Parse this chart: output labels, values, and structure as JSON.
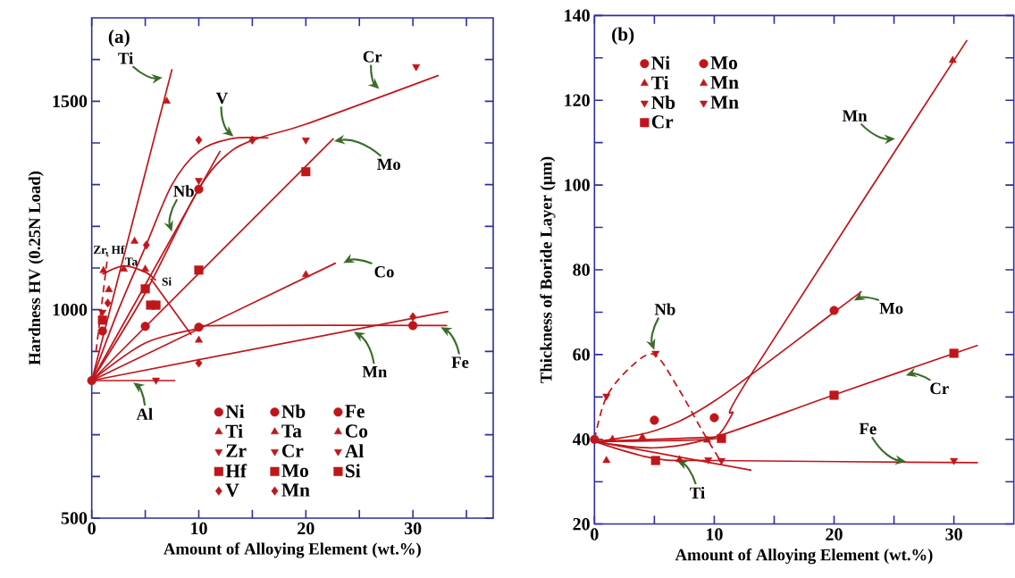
{
  "chart_data": [
    {
      "type": "scatter",
      "xlabel": "Amount of Alloying Element (wt.%)",
      "ylabel": "Hardness HV (0.25N Load)",
      "xlim": [
        0,
        37.5
      ],
      "ylim": [
        500,
        1700
      ],
      "xticks": [
        0,
        {
          "value": 5,
          "label": null
        },
        10,
        {
          "value": 15,
          "label": null
        },
        20,
        {
          "value": 25,
          "label": null
        },
        30,
        {
          "value": 35,
          "label": null
        }
      ],
      "yticks": [
        500,
        {
          "value": 600,
          "label": null
        },
        {
          "value": 700,
          "label": null
        },
        {
          "value": 800,
          "label": null
        },
        {
          "value": 900,
          "label": null
        },
        1000,
        {
          "value": 1100,
          "label": null
        },
        {
          "value": 1200,
          "label": null
        },
        {
          "value": 1300,
          "label": null
        },
        {
          "value": 1400,
          "label": null
        },
        1500,
        {
          "value": 1600,
          "label": null
        }
      ],
      "legend": "bottom",
      "annotations": [
        "(a)",
        {
          "text": "Ti",
          "x": 6.95,
          "y": 1558
        },
        {
          "text": "V",
          "x": 13.5,
          "y": 1410
        },
        {
          "text": "Cr",
          "x": 27.1,
          "y": 1524
        },
        {
          "text": "Mo",
          "x": 22.3,
          "y": 1403
        },
        {
          "text": "Nb",
          "x": 7.6,
          "y": 1179
        },
        {
          "text": "Co",
          "x": 23.2,
          "y": 1108
        },
        {
          "text": "Mn",
          "x": 24.2,
          "y": 951
        },
        {
          "text": "Fe",
          "x": 32.3,
          "y": 962
        },
        {
          "text": "Al",
          "x": 3.6,
          "y": 830
        },
        {
          "text": "Zr, Hf",
          "x": 1.6,
          "y": 1142
        },
        {
          "text": "Ta",
          "x": 3.7,
          "y": 1115
        },
        {
          "text": "Si",
          "x": 7.0,
          "y": 1022
        }
      ],
      "series": [
        {
          "name": "Ni",
          "marker": "circle",
          "color": "#c0161b",
          "x": [
            0
          ],
          "values": [
            830
          ]
        },
        {
          "name": "Nb",
          "marker": "circle",
          "color": "#c0161b",
          "x": [
            1,
            5,
            10
          ],
          "values": [
            949,
            960,
            1289
          ]
        },
        {
          "name": "Fe",
          "marker": "circle",
          "color": "#c0161b",
          "x": [
            10,
            30
          ],
          "values": [
            958,
            962
          ]
        },
        {
          "name": "Ti",
          "marker": "triangle",
          "color": "#c0161b",
          "x": [
            1.6,
            4,
            7
          ],
          "values": [
            1048,
            1164,
            1500
          ]
        },
        {
          "name": "Ta",
          "marker": "triangle",
          "color": "#c0161b",
          "x": [
            1.1,
            3,
            5,
            10
          ],
          "values": [
            1094,
            1097,
            1097,
            927
          ]
        },
        {
          "name": "Co",
          "marker": "triangle",
          "color": "#c0161b",
          "x": [
            20
          ],
          "values": [
            1084
          ]
        },
        {
          "name": "Zr",
          "marker": "triangle_down",
          "color": "#c0161b",
          "x": [
            1
          ],
          "values": [
            994
          ]
        },
        {
          "name": "Cr",
          "marker": "triangle_down",
          "color": "#c0161b",
          "x": [
            10,
            20,
            30.3
          ],
          "values": [
            1310,
            1407,
            1583
          ]
        },
        {
          "name": "Al",
          "marker": "triangle_down",
          "color": "#c0161b",
          "x": [
            6
          ],
          "values": [
            831
          ]
        },
        {
          "name": "Hf",
          "marker": "square",
          "color": "#c0161b",
          "x": [
            1
          ],
          "values": [
            975
          ]
        },
        {
          "name": "Mo",
          "marker": "square",
          "color": "#c0161b",
          "x": [
            10,
            20
          ],
          "values": [
            1095,
            1331
          ]
        },
        {
          "name": "Si",
          "marker": "square",
          "color": "#c0161b",
          "x": [
            5,
            5.5,
            6
          ],
          "values": [
            1050,
            1011,
            1011
          ]
        },
        {
          "name": "V",
          "marker": "diamond",
          "color": "#c0161b",
          "x": [
            1.5,
            5.1,
            10,
            15
          ],
          "values": [
            1016,
            1155,
            1407,
            1407
          ]
        },
        {
          "name": "Mn",
          "marker": "diamond",
          "color": "#c0161b",
          "x": [
            10,
            30
          ],
          "values": [
            872,
            983
          ]
        },
        {
          "type": "line",
          "color": "#c0161b",
          "x": [
            0,
            7.5
          ],
          "values": [
            830,
            1577
          ]
        },
        {
          "type": "line",
          "color": "#c0161b",
          "x": [
            0,
            2.5,
            5,
            7.5,
            10,
            13,
            16.5
          ],
          "values": [
            830,
            1000,
            1150,
            1300,
            1380,
            1410,
            1412
          ]
        },
        {
          "type": "line",
          "color": "#c0161b",
          "x": [
            0,
            12
          ],
          "values": [
            830,
            1381
          ]
        },
        {
          "type": "line",
          "color": "#c0161b",
          "x": [
            0,
            5,
            10,
            13,
            16,
            20,
            32.4
          ],
          "values": [
            830,
            1040,
            1290,
            1380,
            1415,
            1445,
            1562
          ]
        },
        {
          "type": "line",
          "color": "#c0161b",
          "x": [
            0,
            22.6
          ],
          "values": [
            830,
            1411
          ]
        },
        {
          "type": "line",
          "color": "#c0161b",
          "x": [
            0,
            22.8
          ],
          "values": [
            830,
            1112
          ]
        },
        {
          "type": "line",
          "color": "#c0161b",
          "x": [
            0,
            5,
            10,
            12,
            33.2
          ],
          "values": [
            830,
            920,
            955,
            962,
            962
          ]
        },
        {
          "type": "line",
          "color": "#c0161b",
          "x": [
            0,
            33.3
          ],
          "values": [
            830,
            996
          ]
        },
        {
          "type": "line",
          "color": "#c0161b",
          "x": [
            0,
            7.8
          ],
          "values": [
            830,
            830
          ]
        },
        {
          "type": "line",
          "color": "#c0161b",
          "x": [
            1,
            3,
            5,
            6
          ],
          "values": [
            1085,
            1105,
            1090,
            1070
          ]
        },
        {
          "type": "line",
          "color": "#c0161b",
          "x": [
            5.5,
            9.3
          ],
          "values": [
            1075,
            940
          ]
        },
        {
          "type": "line",
          "color": "#c0161b",
          "line_style": "dashed",
          "x": [
            0.4,
            1.5
          ],
          "values": [
            900,
            1132
          ]
        }
      ]
    },
    {
      "type": "scatter",
      "xlabel": "Amount of Alloying Element (wt.%)",
      "ylabel": "Thickness of Boride Layer (μm)",
      "xlim": [
        0,
        35
      ],
      "ylim": [
        20,
        140
      ],
      "xticks": [
        0,
        {
          "value": 5,
          "label": null
        },
        10,
        {
          "value": 15,
          "label": null
        },
        20,
        {
          "value": 25,
          "label": null
        },
        30
      ],
      "yticks": [
        20,
        {
          "value": 30,
          "label": null
        },
        40,
        {
          "value": 50,
          "label": null
        },
        60,
        {
          "value": 70,
          "label": null
        },
        80,
        {
          "value": 90,
          "label": null
        },
        100,
        {
          "value": 110,
          "label": null
        },
        120,
        {
          "value": 130,
          "label": null
        },
        140
      ],
      "legend": "top left",
      "annotations": [
        "(b)",
        {
          "text": "Mn",
          "x": 25.4,
          "y": 111
        },
        {
          "text": "Nb",
          "x": 5.1,
          "y": 60.3
        },
        {
          "text": "Mo",
          "x": 21.4,
          "y": 72.3
        },
        {
          "text": "Cr",
          "x": 25.7,
          "y": 54.8
        },
        {
          "text": "Fe",
          "x": 26.3,
          "y": 34.6
        },
        {
          "text": "Ti",
          "x": 6.6,
          "y": 35.3
        }
      ],
      "series": [
        {
          "name": "Ni",
          "marker": "circle",
          "color": "#c0161b",
          "x": [
            0
          ],
          "values": [
            40
          ]
        },
        {
          "name": "Mo",
          "marker": "circle",
          "color": "#c0161b",
          "x": [
            5,
            10,
            20
          ],
          "values": [
            44.5,
            45.1,
            70.4
          ]
        },
        {
          "name": "Ti",
          "marker": "triangle",
          "color": "#c0161b",
          "x": [
            1,
            1.5,
            4,
            7.1
          ],
          "values": [
            35,
            40,
            40.5,
            35.2
          ]
        },
        {
          "name": "Mn",
          "marker": "triangle",
          "color": "#c0161b",
          "x": [
            9.4,
            29.9
          ],
          "values": [
            39.8,
            129.4
          ]
        },
        {
          "name": "Nb",
          "marker": "triangle_down",
          "color": "#c0161b",
          "x": [
            1,
            5.1,
            10.6
          ],
          "values": [
            50.2,
            60.3,
            35
          ]
        },
        {
          "name": "Mn",
          "marker": "triangle_down",
          "color": "#c0161b",
          "x": [
            9.5,
            30
          ],
          "values": [
            35.2,
            35
          ]
        },
        {
          "name": "Cr",
          "marker": "square",
          "color": "#c0161b",
          "x": [
            5.1,
            10.6,
            20,
            30
          ],
          "values": [
            35,
            40.2,
            50.4,
            60.3
          ]
        },
        {
          "type": "line",
          "color": "#c0161b",
          "x": [
            0,
            9.5,
            10.5,
            11.5,
            13,
            31.1
          ],
          "values": [
            39.5,
            40,
            41.5,
            46,
            55,
            134.2
          ]
        },
        {
          "type": "line",
          "color": "#c0161b",
          "x": [
            0,
            5,
            10,
            20,
            22.3
          ],
          "values": [
            39.5,
            42,
            49,
            70,
            74.9
          ]
        },
        {
          "type": "line",
          "color": "#c0161b",
          "x": [
            0,
            5,
            10,
            20,
            32
          ],
          "values": [
            39.5,
            38,
            40.5,
            50.5,
            62.2
          ]
        },
        {
          "type": "line",
          "color": "#c0161b",
          "x": [
            0,
            5,
            10,
            32
          ],
          "values": [
            39.5,
            35.5,
            35,
            34.5
          ]
        },
        {
          "type": "line",
          "color": "#c0161b",
          "x": [
            0,
            13.1
          ],
          "values": [
            39.5,
            32.7
          ]
        },
        {
          "type": "line",
          "color": "#c0161b",
          "x": [
            0,
            10
          ],
          "values": [
            39.5,
            40.5
          ]
        },
        {
          "type": "line",
          "color": "#c0161b",
          "line_style": "dashed",
          "x": [
            0,
            1,
            3,
            5,
            7,
            9,
            10.5
          ],
          "values": [
            40,
            50,
            57,
            60,
            52,
            42,
            35
          ]
        }
      ]
    }
  ]
}
